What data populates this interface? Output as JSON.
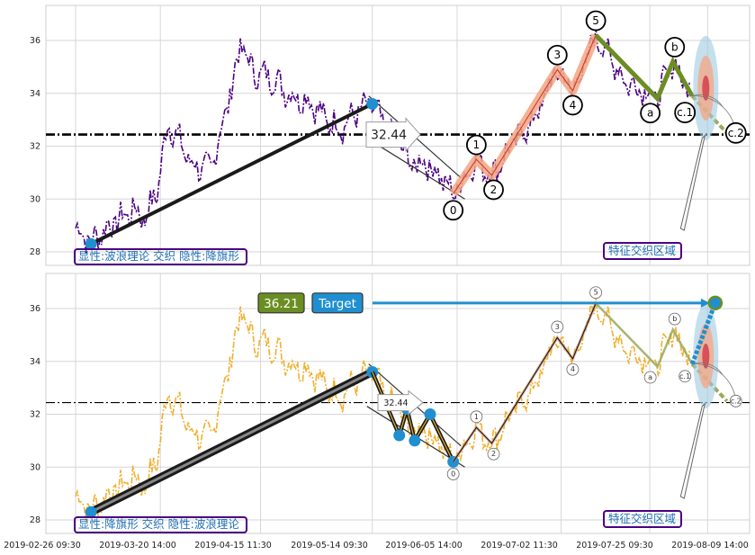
{
  "chart_data": [
    {
      "type": "line",
      "panel": "top",
      "title": "",
      "xlabel": "",
      "ylabel": "",
      "ylim": [
        27.5,
        37.3
      ],
      "yticks": [
        28,
        30,
        32,
        34,
        36
      ],
      "grid": true,
      "horizontal_line": 32.44,
      "price_tag": "32.44",
      "annotation_box": "显性:波浪理论 交织 隐性:降旗形",
      "zone_label": "特征交织区域",
      "price_color": "#4b0082",
      "wave_color": "#f4a582",
      "correction_color": "#6b8e23",
      "waves": [
        {
          "label": "0",
          "x": "2019-06-04",
          "y": 30.2
        },
        {
          "label": "1",
          "x": "2019-06-10",
          "y": 31.5
        },
        {
          "label": "2",
          "x": "2019-06-14",
          "y": 30.9
        },
        {
          "label": "3",
          "x": "2019-07-01",
          "y": 34.9
        },
        {
          "label": "4",
          "x": "2019-07-05",
          "y": 34.1
        },
        {
          "label": "5",
          "x": "2019-07-11",
          "y": 36.2
        },
        {
          "label": "a",
          "x": "2019-07-27",
          "y": 33.8
        },
        {
          "label": "b",
          "x": "2019-07-31",
          "y": 35.2
        },
        {
          "label": "c.1",
          "x": "2019-08-05",
          "y": 33.9
        },
        {
          "label": "c.2",
          "x": "2019-08-14",
          "y": 32.5
        }
      ]
    },
    {
      "type": "line",
      "panel": "bottom",
      "title": "",
      "xlabel": "",
      "ylabel": "",
      "ylim": [
        27.5,
        37.3
      ],
      "yticks": [
        28,
        30,
        32,
        34,
        36
      ],
      "grid": true,
      "horizontal_line": 32.44,
      "price_tag": "32.44",
      "target_value": "36.21",
      "target_label": "Target",
      "annotation_box": "显性:降旗形 交织 隐性:波浪理论",
      "zone_label": "特征交织区域",
      "price_color": "#f0b030",
      "flag_points": [
        {
          "x": "2019-03-02",
          "y": 28.3
        },
        {
          "x": "2019-05-14",
          "y": 33.6
        },
        {
          "x": "2019-05-21",
          "y": 31.2
        },
        {
          "x": "2019-05-23",
          "y": 32.2
        },
        {
          "x": "2019-05-25",
          "y": 31.0
        },
        {
          "x": "2019-05-29",
          "y": 32.0
        },
        {
          "x": "2019-06-04",
          "y": 30.2
        }
      ],
      "waves": [
        {
          "label": "0",
          "x": "2019-06-04",
          "y": 30.2
        },
        {
          "label": "1",
          "x": "2019-06-10",
          "y": 31.5
        },
        {
          "label": "2",
          "x": "2019-06-14",
          "y": 30.9
        },
        {
          "label": "3",
          "x": "2019-07-01",
          "y": 34.9
        },
        {
          "label": "4",
          "x": "2019-07-05",
          "y": 34.1
        },
        {
          "label": "5",
          "x": "2019-07-11",
          "y": 36.2
        },
        {
          "label": "a",
          "x": "2019-07-27",
          "y": 33.8
        },
        {
          "label": "b",
          "x": "2019-07-31",
          "y": 35.2
        },
        {
          "label": "c.1",
          "x": "2019-08-05",
          "y": 33.9
        },
        {
          "label": "c.2",
          "x": "2019-08-14",
          "y": 32.5
        }
      ]
    }
  ],
  "x_axis": {
    "tick_labels": [
      "2019-02-26 09:30",
      "2019-03-20 14:00",
      "2019-04-15 11:30",
      "2019-05-14 09:30",
      "2019-06-05 14:00",
      "2019-07-02 11:30",
      "2019-07-25 09:30",
      "2019-08-09 14:00"
    ]
  },
  "series": {
    "name": "",
    "x_start": "2019-02-26",
    "anchors": [
      [
        "2019-02-26",
        28.9
      ],
      [
        "2019-03-02",
        28.4
      ],
      [
        "2019-03-07",
        29.0
      ],
      [
        "2019-03-13",
        29.6
      ],
      [
        "2019-03-16",
        29.3
      ],
      [
        "2019-03-19",
        30.2
      ],
      [
        "2019-03-22",
        32.9
      ],
      [
        "2019-03-25",
        32.2
      ],
      [
        "2019-03-28",
        31.3
      ],
      [
        "2019-04-02",
        31.1
      ],
      [
        "2019-04-06",
        33.3
      ],
      [
        "2019-04-10",
        35.9
      ],
      [
        "2019-04-13",
        34.8
      ],
      [
        "2019-04-18",
        34.6
      ],
      [
        "2019-04-23",
        33.9
      ],
      [
        "2019-04-28",
        33.7
      ],
      [
        "2019-05-02",
        33.0
      ],
      [
        "2019-05-06",
        32.7
      ],
      [
        "2019-05-10",
        33.3
      ],
      [
        "2019-05-14",
        33.6
      ],
      [
        "2019-05-18",
        32.5
      ],
      [
        "2019-05-21",
        32.2
      ],
      [
        "2019-05-24",
        31.3
      ],
      [
        "2019-05-28",
        31.4
      ],
      [
        "2019-06-01",
        30.8
      ],
      [
        "2019-06-04",
        30.2
      ],
      [
        "2019-06-10",
        31.5
      ],
      [
        "2019-06-14",
        30.9
      ],
      [
        "2019-06-20",
        32.2
      ],
      [
        "2019-06-25",
        33.0
      ],
      [
        "2019-07-01",
        34.9
      ],
      [
        "2019-07-05",
        34.1
      ],
      [
        "2019-07-08",
        35.0
      ],
      [
        "2019-07-11",
        36.2
      ],
      [
        "2019-07-15",
        35.3
      ],
      [
        "2019-07-19",
        34.4
      ],
      [
        "2019-07-23",
        34.2
      ],
      [
        "2019-07-27",
        33.8
      ],
      [
        "2019-07-31",
        35.2
      ],
      [
        "2019-08-03",
        34.4
      ],
      [
        "2019-08-05",
        33.9
      ]
    ]
  },
  "colors": {
    "zone_ellipse_outer": "#9ecae1",
    "zone_ellipse_mid": "#f4a582",
    "zone_ellipse_inner": "#ca0020",
    "marker_blue": "#1f8fd0",
    "box_border": "#4b0082",
    "target_green": "#6b8e23",
    "target_blue": "#1f8fd0"
  }
}
